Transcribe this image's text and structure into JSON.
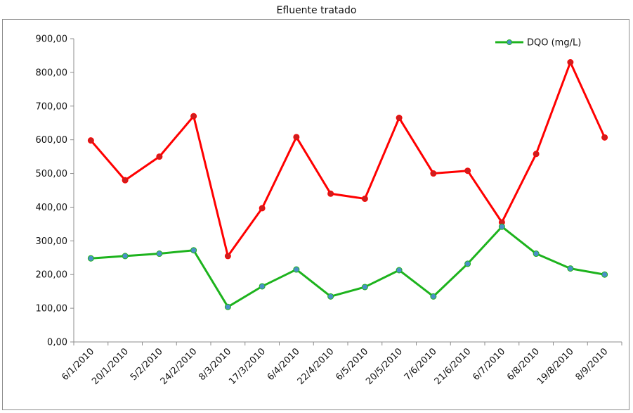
{
  "chart_data": {
    "type": "line",
    "title": "Efluente tratado",
    "xlabel": "",
    "ylabel": "",
    "ylim": [
      0,
      900
    ],
    "y_ticks": [
      "0,00",
      "100,00",
      "200,00",
      "300,00",
      "400,00",
      "500,00",
      "600,00",
      "700,00",
      "800,00",
      "900,00"
    ],
    "categories": [
      "6/1/2010",
      "20/1/2010",
      "5/2/2010",
      "24/2/2010",
      "8/3/2010",
      "17/3/2010",
      "6/4/2010",
      "22/4/2010",
      "6/5/2010",
      "20/5/2010",
      "7/6/2010",
      "21/6/2010",
      "6/7/2010",
      "6/8/2010",
      "19/8/2010",
      "8/9/2010"
    ],
    "grid": false,
    "legend_position": "top-right",
    "series": [
      {
        "color": "#ff0000",
        "marker_color": "#cc1f1f",
        "values": [
          598,
          480,
          550,
          670,
          255,
          397,
          608,
          440,
          425,
          665,
          500,
          508,
          355,
          558,
          830,
          607
        ]
      },
      {
        "name": "DQO (mg/L)",
        "color": "#1db31d",
        "marker_color": "#4a90c8",
        "values": [
          248,
          255,
          262,
          272,
          104,
          165,
          215,
          135,
          163,
          213,
          135,
          232,
          342,
          262,
          218,
          200
        ]
      }
    ]
  }
}
